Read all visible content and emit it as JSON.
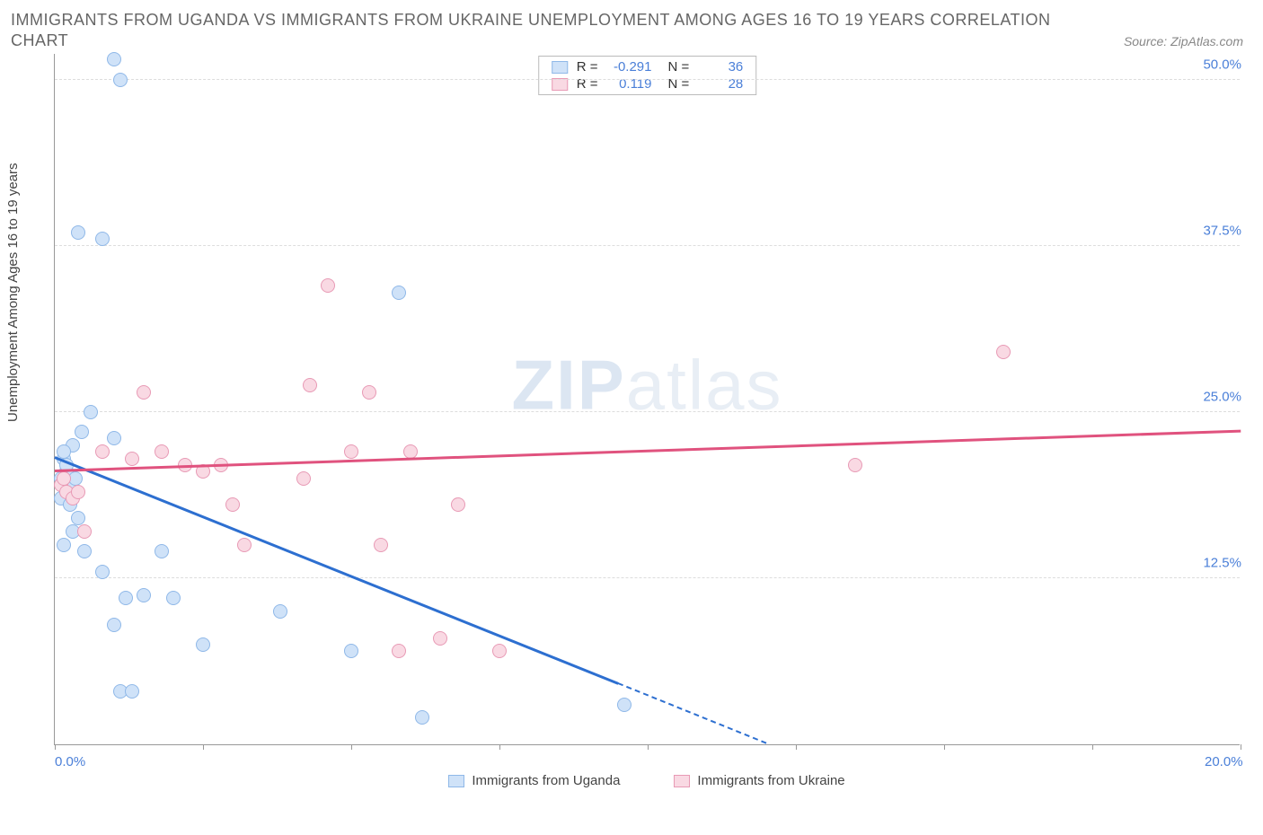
{
  "title_line1": "IMMIGRANTS FROM UGANDA VS IMMIGRANTS FROM UKRAINE UNEMPLOYMENT AMONG AGES 16 TO 19 YEARS CORRELATION",
  "title_line2": "CHART",
  "source": "Source: ZipAtlas.com",
  "y_axis_label": "Unemployment Among Ages 16 to 19 years",
  "watermark_bold": "ZIP",
  "watermark_light": "atlas",
  "chart": {
    "type": "scatter",
    "xlim": [
      0,
      20
    ],
    "ylim": [
      0,
      52
    ],
    "x_ticks": [
      0,
      2.5,
      5,
      7.5,
      10,
      12.5,
      15,
      17.5,
      20
    ],
    "x_labels": {
      "0": "0.0%",
      "20": "20.0%"
    },
    "y_gridlines": [
      12.5,
      25,
      37.5,
      50
    ],
    "y_labels": {
      "12.5": "12.5%",
      "25": "25.0%",
      "37.5": "37.5%",
      "50": "50.0%"
    },
    "grid_color": "#dddddd",
    "axis_label_color": "#4a7fd8",
    "background_color": "#ffffff"
  },
  "series": [
    {
      "name": "Immigrants from Uganda",
      "color_fill": "#cfe2f8",
      "color_stroke": "#8fb8e8",
      "R": "-0.291",
      "N": "36",
      "trend": {
        "x1": 0,
        "y1": 21.5,
        "x2": 12,
        "y2": 0,
        "color": "#2d6fd0"
      },
      "trend_dash": {
        "x1": 9.5,
        "y1": 4.5,
        "x2": 12,
        "y2": 0,
        "color": "#2d6fd0"
      },
      "points": [
        [
          0.15,
          21.5
        ],
        [
          0.2,
          20.5
        ],
        [
          0.3,
          22.5
        ],
        [
          0.2,
          19
        ],
        [
          0.1,
          18.5
        ],
        [
          0.25,
          18
        ],
        [
          0.4,
          17
        ],
        [
          0.3,
          16
        ],
        [
          0.15,
          15
        ],
        [
          0.5,
          14.5
        ],
        [
          0.6,
          25
        ],
        [
          1.0,
          23
        ],
        [
          0.8,
          38
        ],
        [
          0.4,
          38.5
        ],
        [
          1.0,
          51.5
        ],
        [
          1.1,
          50
        ],
        [
          1.2,
          11
        ],
        [
          1.5,
          11.2
        ],
        [
          2.0,
          11
        ],
        [
          1.0,
          9
        ],
        [
          1.1,
          4
        ],
        [
          1.3,
          4
        ],
        [
          1.8,
          14.5
        ],
        [
          0.8,
          13
        ],
        [
          2.5,
          7.5
        ],
        [
          3.8,
          10
        ],
        [
          5.0,
          7
        ],
        [
          5.8,
          34
        ],
        [
          6.2,
          2
        ],
        [
          9.6,
          3
        ],
        [
          0.1,
          20
        ],
        [
          0.25,
          19.5
        ],
        [
          0.15,
          22
        ],
        [
          0.35,
          20
        ],
        [
          0.2,
          21
        ],
        [
          0.45,
          23.5
        ]
      ]
    },
    {
      "name": "Immigrants from Ukraine",
      "color_fill": "#f9d9e3",
      "color_stroke": "#e89ab5",
      "R": "0.119",
      "N": "28",
      "trend": {
        "x1": 0,
        "y1": 20.5,
        "x2": 20,
        "y2": 23.5,
        "color": "#e0527e"
      },
      "points": [
        [
          0.1,
          19.5
        ],
        [
          0.15,
          20
        ],
        [
          0.2,
          19
        ],
        [
          0.3,
          18.5
        ],
        [
          0.4,
          19
        ],
        [
          0.8,
          22
        ],
        [
          1.3,
          21.5
        ],
        [
          1.5,
          26.5
        ],
        [
          1.8,
          22
        ],
        [
          2.2,
          21
        ],
        [
          2.5,
          20.5
        ],
        [
          2.8,
          21
        ],
        [
          3.0,
          18
        ],
        [
          3.2,
          15
        ],
        [
          4.2,
          20
        ],
        [
          4.3,
          27
        ],
        [
          4.6,
          34.5
        ],
        [
          5.3,
          26.5
        ],
        [
          5.5,
          15
        ],
        [
          5.0,
          22
        ],
        [
          6.0,
          22
        ],
        [
          6.5,
          8
        ],
        [
          6.8,
          18
        ],
        [
          7.5,
          7
        ],
        [
          5.8,
          7
        ],
        [
          13.5,
          21
        ],
        [
          16.0,
          29.5
        ],
        [
          0.5,
          16
        ]
      ]
    }
  ],
  "legend_top": {
    "R_label": "R =",
    "N_label": "N ="
  },
  "legend_bottom": [
    "Immigrants from Uganda",
    "Immigrants from Ukraine"
  ]
}
